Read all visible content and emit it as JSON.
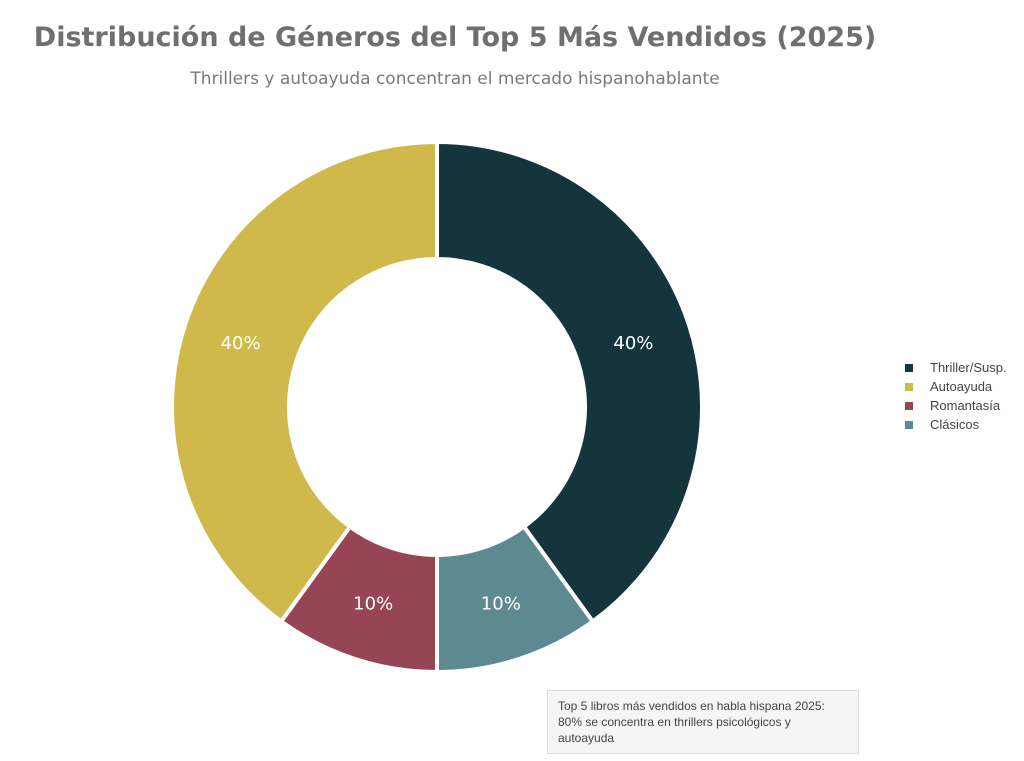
{
  "chart_data": {
    "type": "pie",
    "donut": true,
    "title": "Distribución de Géneros del Top 5 Más Vendidos (2025)",
    "subtitle": "Thrillers y autoayuda concentran el mercado hispanohablante",
    "slices": [
      {
        "label": "Thriller/Susp.",
        "value": 40,
        "display": "40%",
        "color": "#15353d"
      },
      {
        "label": "Clásicos",
        "value": 10,
        "display": "10%",
        "color": "#5d8a91"
      },
      {
        "label": "Romantasía",
        "value": 10,
        "display": "10%",
        "color": "#954553"
      },
      {
        "label": "Autoayuda",
        "value": 40,
        "display": "40%",
        "color": "#d0b94b"
      }
    ],
    "legend": {
      "placement": "right",
      "entries": [
        {
          "label": "Thriller/Susp.",
          "color": "#15353d"
        },
        {
          "label": "Autoayuda",
          "color": "#d0b94b"
        },
        {
          "label": "Romantasía",
          "color": "#954553"
        },
        {
          "label": "Clásicos",
          "color": "#5d8a91"
        }
      ]
    },
    "annotation": {
      "line1": "Top 5 libros más vendidos en habla hispana 2025:",
      "line2": "80% se concentra en thrillers psicológicos y autoayuda"
    }
  }
}
